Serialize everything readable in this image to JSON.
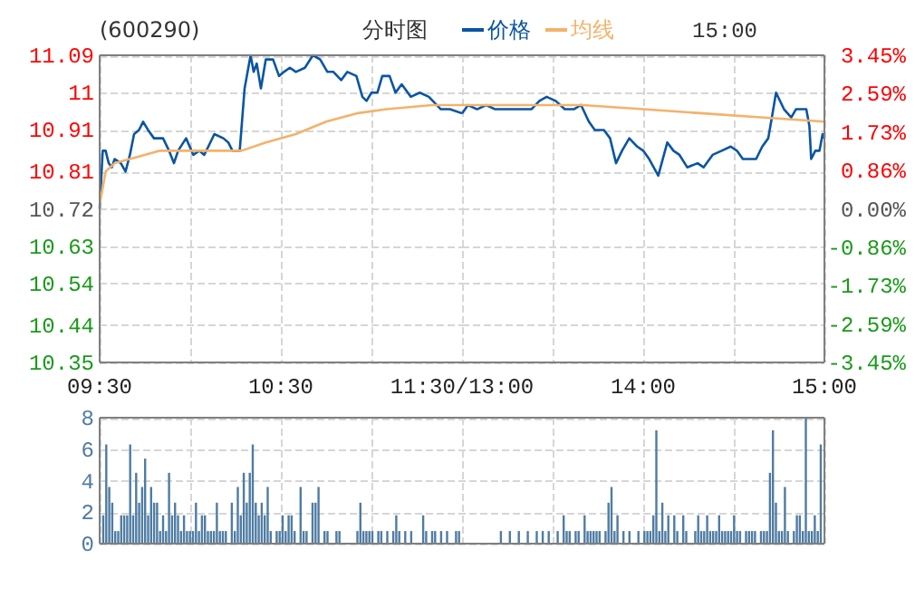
{
  "chart_data": [
    {
      "type": "line",
      "title": "(600290)",
      "subtitle": "分时图",
      "annotations": [
        "15:00"
      ],
      "legend": "top",
      "grid": true,
      "line_style": "solid",
      "xlim": [
        9.5,
        11.5
      ],
      "xticks": [
        {
          "value": 9.5,
          "label": "09:30"
        },
        {
          "value": 10,
          "label": null
        },
        {
          "value": 10.5,
          "label": "10:30"
        },
        {
          "value": 11,
          "label": null
        },
        {
          "value": 11.5,
          "label": "11:30/13:00"
        }
      ],
      "ylim": [
        10.35,
        11.09
      ],
      "yticks": [
        10.35,
        10.44,
        10.54,
        10.63,
        10.72,
        10.81,
        10.91,
        11.0,
        11.09
      ],
      "series": [
        {
          "name": "价格",
          "color": "#0a55a3",
          "x": [
            9.5,
            9.517,
            9.533,
            9.55,
            9.567,
            9.583,
            9.617,
            9.643,
            9.667,
            9.69,
            9.717,
            9.74,
            9.767,
            9.8,
            9.85,
            9.883,
            9.91,
            9.933,
            9.977,
            10.017,
            10.05,
            10.077,
            10.1,
            10.133,
            10.183,
            10.21,
            10.233,
            10.273,
            10.3,
            10.333,
            10.35,
            10.367,
            10.39,
            10.417,
            10.457,
            10.49,
            10.517,
            10.55,
            10.583,
            10.633,
            10.677,
            10.717,
            10.757,
            10.79,
            10.833,
            10.867,
            10.917,
            10.95,
            10.973,
            11.0,
            11.033,
            11.06,
            11.1,
            11.133,
            11.167,
            11.217,
            11.267,
            11.317,
            11.383,
            11.433,
            11.5
          ],
          "values": [
            10.72,
            10.86,
            10.86,
            10.83,
            10.82,
            10.84,
            10.83,
            10.81,
            10.85,
            10.9,
            10.91,
            10.93,
            10.91,
            10.89,
            10.89,
            10.86,
            10.83,
            10.86,
            10.89,
            10.85,
            10.86,
            10.85,
            10.87,
            10.9,
            10.89,
            10.88,
            10.86,
            10.86,
            11.01,
            11.09,
            11.05,
            11.07,
            11.01,
            11.08,
            11.08,
            11.04,
            11.05,
            11.06,
            11.05,
            11.06,
            11.09,
            11.08,
            11.05,
            11.05,
            11.03,
            11.05,
            11.04,
            10.99,
            10.98,
            11.0,
            11.0,
            11.04,
            11.04,
            11.0,
            11.02,
            10.99,
            11.0,
            10.99,
            10.96,
            10.96,
            10.95
          ]
        },
        {
          "name": "均线",
          "color": "#f4b26a",
          "x": [
            9.5,
            9.533,
            9.583,
            9.667,
            9.833,
            10.0,
            10.167,
            10.283,
            10.417,
            10.583,
            10.75,
            10.917,
            11.083,
            11.333,
            11.5
          ],
          "values": [
            10.73,
            10.81,
            10.83,
            10.84,
            10.86,
            10.86,
            10.86,
            10.86,
            10.88,
            10.9,
            10.93,
            10.95,
            10.96,
            10.97,
            10.97
          ]
        }
      ]
    },
    {
      "type": "line",
      "grid": true,
      "line_style": "solid",
      "tick_labels": "x",
      "xlim": [
        13,
        15
      ],
      "xticks": [
        {
          "value": 13,
          "label": null
        },
        {
          "value": 13.5,
          "label": null
        },
        {
          "value": 14,
          "label": "14:00"
        },
        {
          "value": 14.5,
          "label": null
        },
        {
          "value": 15,
          "label": "15:00"
        }
      ],
      "ylim": [
        10.35,
        11.09
      ],
      "yticks": [
        10.35,
        10.44,
        10.54,
        10.63,
        10.72,
        10.81,
        10.91,
        11.0,
        11.09
      ],
      "y2lim": [
        -3.45,
        3.45
      ],
      "y2ticks": [
        {
          "value": -3.45,
          "label": "-3.45%"
        },
        {
          "value": -2.59,
          "label": "-2.59%"
        },
        {
          "value": -1.73,
          "label": "-1.73%"
        },
        {
          "value": -0.86,
          "label": "-0.86%"
        },
        {
          "value": 0,
          "label": "0.00%"
        },
        {
          "value": 0.86,
          "label": "0.86%"
        },
        {
          "value": 1.73,
          "label": "1.73%"
        },
        {
          "value": 2.59,
          "label": "2.59%"
        },
        {
          "value": 3.45,
          "label": "3.45%"
        }
      ],
      "series": [
        {
          "color": "#0a55a3",
          "x": [
            13.0,
            13.033,
            13.083,
            13.133,
            13.183,
            13.25,
            13.317,
            13.383,
            13.427,
            13.467,
            13.517,
            13.567,
            13.617,
            13.657,
            13.7,
            13.733,
            13.783,
            13.817,
            13.85,
            13.883,
            13.923,
            13.967,
            14.0,
            14.033,
            14.083,
            14.133,
            14.167,
            14.2,
            14.243,
            14.3,
            14.333,
            14.383,
            14.433,
            14.483,
            14.517,
            14.55,
            14.623,
            14.657,
            14.69,
            14.71,
            14.733,
            14.777,
            14.817,
            14.843,
            14.9,
            14.917,
            14.927,
            14.95,
            14.973,
            14.99,
            15.0
          ],
          "values": [
            10.95,
            10.97,
            10.96,
            10.97,
            10.96,
            10.96,
            10.96,
            10.96,
            10.98,
            10.99,
            10.98,
            10.96,
            10.96,
            10.97,
            10.93,
            10.91,
            10.91,
            10.89,
            10.83,
            10.86,
            10.89,
            10.87,
            10.86,
            10.84,
            10.8,
            10.88,
            10.86,
            10.85,
            10.82,
            10.83,
            10.82,
            10.85,
            10.86,
            10.87,
            10.86,
            10.84,
            10.84,
            10.87,
            10.89,
            10.94,
            11.0,
            10.96,
            10.94,
            10.96,
            10.96,
            10.92,
            10.84,
            10.86,
            10.86,
            10.9,
            10.89
          ]
        },
        {
          "color": "#f4b26a",
          "x": [
            13.0,
            13.333,
            13.667,
            14.0,
            14.333,
            14.667,
            15.0
          ],
          "values": [
            10.97,
            10.97,
            10.97,
            10.96,
            10.95,
            10.94,
            10.93
          ]
        }
      ]
    },
    {
      "type": "bar",
      "grid": true,
      "tick_labels": "y",
      "color": "#4f7ca3",
      "ylim": [
        0,
        8
      ],
      "yticks": [
        0,
        2,
        4,
        6,
        8
      ],
      "categories": [
        null,
        null,
        null,
        null,
        null,
        null,
        null,
        null,
        null,
        null,
        null,
        null,
        null,
        null,
        null,
        null,
        null,
        null,
        null,
        null,
        null,
        null,
        null,
        null,
        null,
        null,
        null,
        null,
        null,
        null,
        null,
        null,
        null,
        null,
        null,
        null,
        null,
        null,
        null,
        null,
        null,
        null,
        null,
        null,
        null,
        null,
        null,
        null,
        null,
        null,
        null,
        null,
        null,
        null,
        null,
        null,
        null,
        null,
        null,
        null,
        null,
        null,
        null,
        null,
        null,
        null,
        null,
        null,
        null,
        null,
        null,
        null,
        null,
        null,
        null,
        null,
        null,
        null,
        null,
        null,
        null,
        null,
        null,
        null,
        null,
        null,
        null,
        null,
        null,
        null,
        null,
        null,
        null,
        null,
        null,
        null,
        null,
        null,
        null,
        null,
        null,
        null,
        null,
        null,
        null,
        null,
        null,
        null,
        null,
        null,
        null,
        null,
        null,
        null,
        null,
        null,
        null,
        null,
        null,
        null,
        null,
        null,
        null,
        null,
        null,
        null,
        null,
        null,
        null,
        null,
        null,
        null,
        null,
        null,
        null,
        null,
        null,
        null,
        null,
        null,
        null,
        null,
        null,
        null,
        null,
        null,
        null,
        null,
        null,
        null,
        null,
        null,
        null,
        null,
        null,
        null,
        null,
        null,
        null,
        null,
        null,
        null,
        null,
        null,
        null,
        null,
        null,
        null,
        null,
        null,
        null,
        null,
        null,
        null,
        null,
        null,
        null,
        null,
        null,
        null,
        null,
        null,
        null,
        null,
        null,
        null,
        null,
        null,
        null,
        null,
        null,
        null,
        null,
        null,
        null,
        null,
        null,
        null,
        null,
        null,
        null,
        null,
        null,
        null,
        null,
        null,
        null,
        null,
        null,
        null,
        null,
        null,
        null,
        null,
        null,
        null,
        null,
        null,
        null,
        null,
        null,
        null,
        null,
        null,
        null,
        null,
        null,
        null,
        null,
        null,
        null,
        null,
        null,
        null,
        null,
        null,
        null,
        null,
        null,
        null,
        null
      ],
      "values": [
        1.8,
        6.3,
        3.6,
        2.6,
        0.8,
        0.8,
        1.8,
        1.8,
        1.8,
        6.3,
        1.8,
        4.5,
        2.6,
        3.6,
        5.4,
        1.8,
        3.6,
        2.6,
        2.6,
        0.8,
        1.8,
        0.8,
        4.5,
        1.8,
        2.6,
        1.8,
        0.8,
        1.8,
        0.8,
        0.8,
        0.8,
        2.6,
        0.8,
        1.8,
        1.8,
        0.8,
        0.8,
        0.8,
        2.6,
        0.8,
        0.8,
        0.8,
        0,
        2.6,
        0.8,
        3.6,
        1.8,
        4.5,
        2.6,
        4.5,
        6.3,
        2.6,
        1.8,
        2.6,
        1.8,
        3.6,
        0.8,
        0,
        0.8,
        0.8,
        1.8,
        0.8,
        1.8,
        1.8,
        0.8,
        0,
        3.6,
        0.8,
        0.8,
        0,
        2.6,
        2.6,
        3.6,
        0,
        0.8,
        0.8,
        0,
        0,
        0.8,
        0.8,
        0,
        0,
        0,
        0,
        0,
        0.8,
        2.6,
        0.8,
        0.8,
        0.8,
        0.8,
        0,
        0.8,
        0.8,
        0,
        0.8,
        0,
        0.8,
        1.8,
        0.8,
        0,
        0.8,
        0,
        0.8,
        0,
        0,
        0,
        1.8,
        0.8,
        0,
        0.8,
        0.8,
        0,
        0.8,
        0,
        0.8,
        0,
        0,
        0.8,
        0.8,
        0,
        0,
        0,
        0,
        0,
        0,
        0,
        0,
        0,
        0,
        0,
        0,
        0,
        0.8,
        0,
        0,
        0.8,
        0,
        0,
        0.8,
        0,
        0,
        0.8,
        0,
        0,
        0.8,
        0,
        0.8,
        0,
        0.8,
        0,
        0,
        0.8,
        0,
        1.8,
        0.8,
        0.8,
        0,
        0.8,
        0.8,
        0,
        1.8,
        0.8,
        0.8,
        0.8,
        0.8,
        0.8,
        0,
        0.8,
        2.6,
        3.6,
        0.8,
        1.8,
        0,
        0.8,
        0,
        0.8,
        0,
        0,
        0.8,
        0,
        0.8,
        0.8,
        0.8,
        1.8,
        7.2,
        0.8,
        2.6,
        0.8,
        1.8,
        0,
        1.8,
        0.8,
        0,
        1.8,
        0.8,
        0,
        0,
        0.8,
        1.8,
        0.8,
        0.8,
        1.8,
        0.8,
        0.8,
        0.8,
        1.8,
        0.8,
        0.8,
        0.8,
        0.8,
        1.8,
        0.8,
        0.8,
        0,
        0.8,
        0.8,
        0.8,
        0.8,
        0,
        0.8,
        0.8,
        0.8,
        4.5,
        7.2,
        2.6,
        0.8,
        0.8,
        3.6,
        0.8,
        0,
        0.8,
        1.8,
        1.8,
        0.8,
        8,
        0.8,
        0.8,
        1.8,
        0.8,
        6.3
      ]
    }
  ]
}
